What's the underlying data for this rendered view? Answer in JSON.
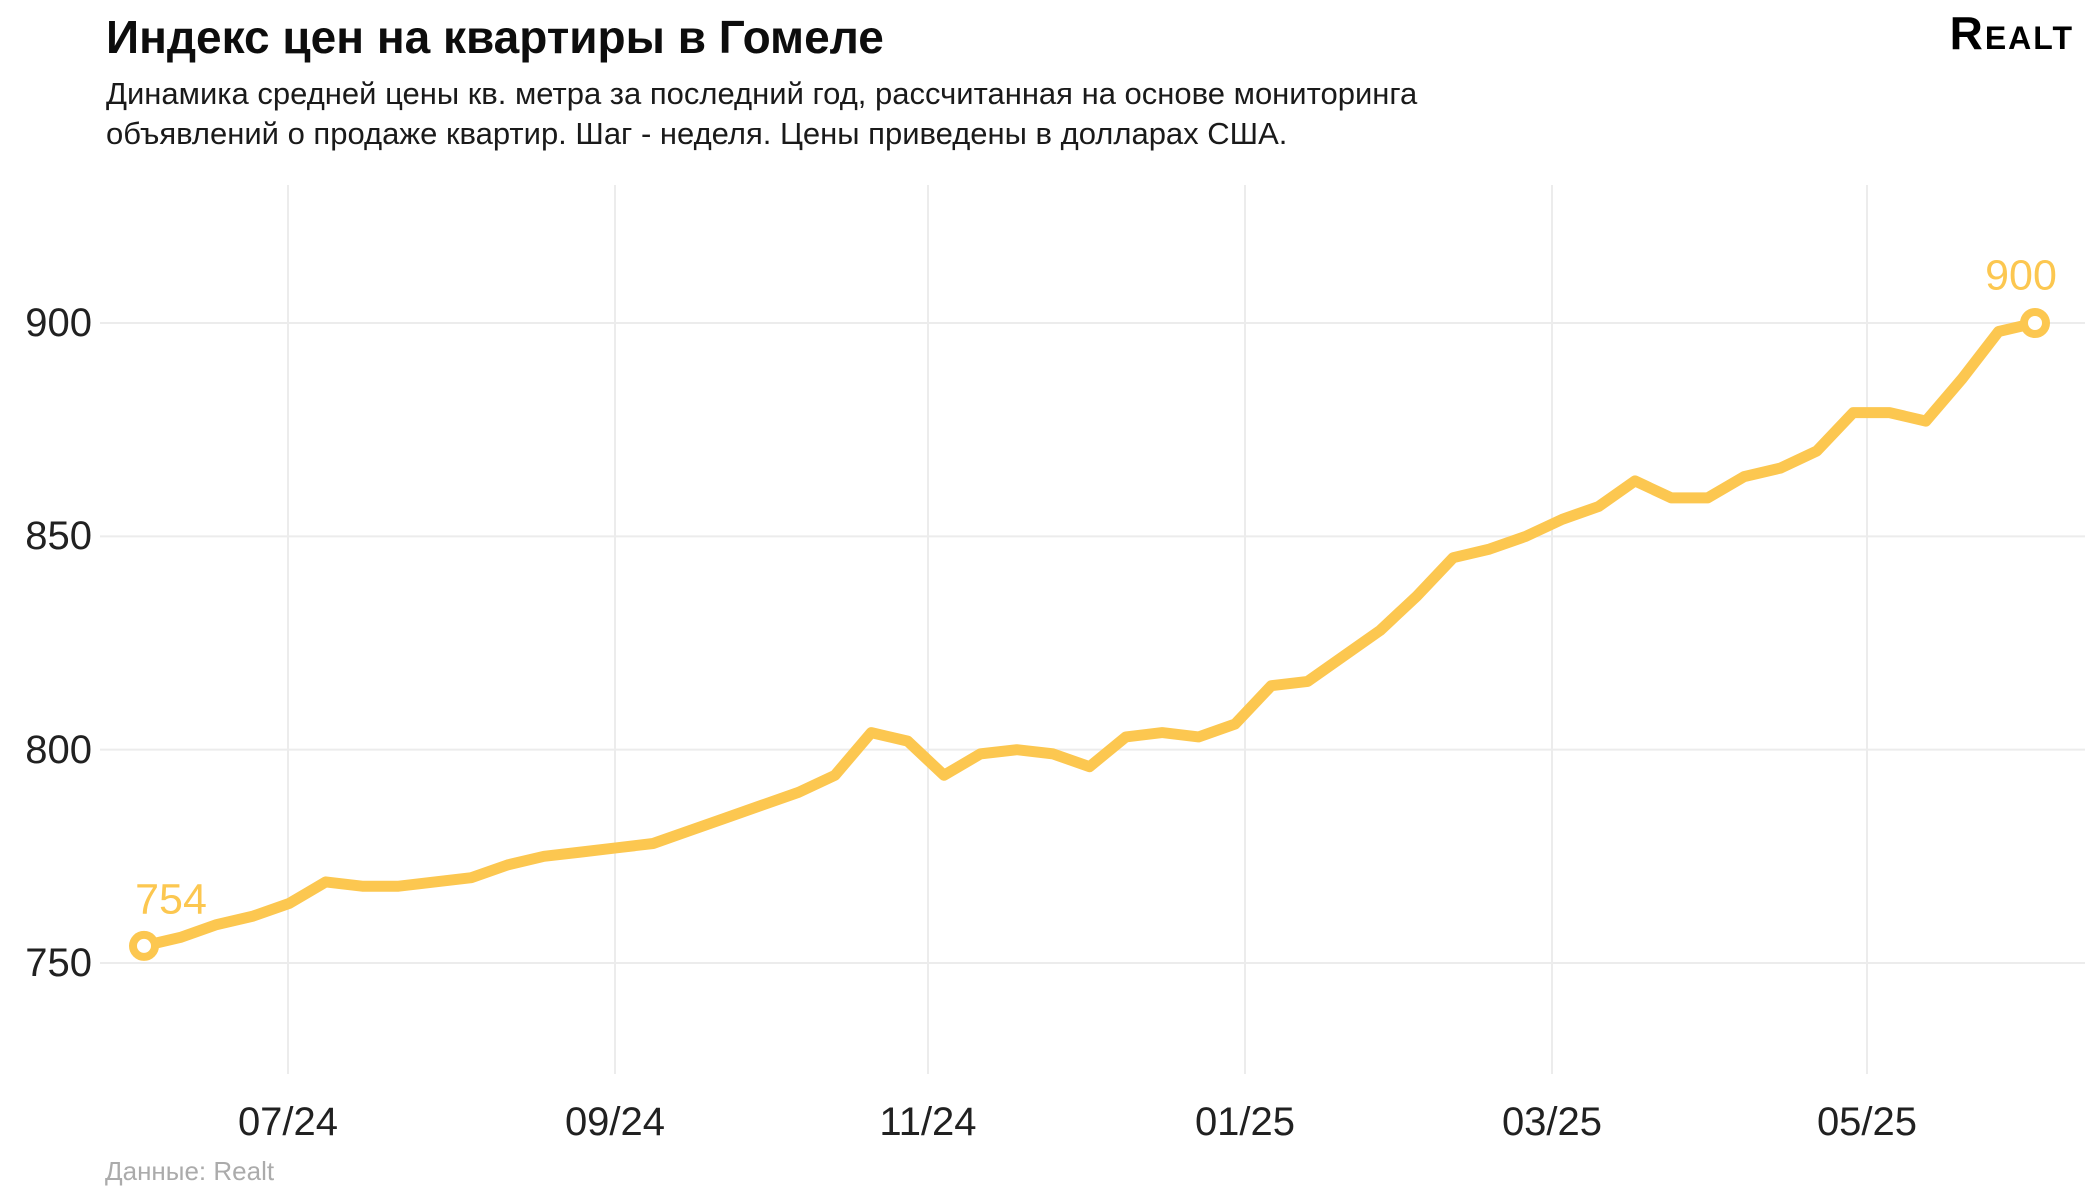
{
  "header": {
    "title": "Индекс цен на квартиры в Гомеле",
    "subtitle_lines": [
      "Динамика средней цены кв. метра за последний год, рассчитанная на основе мониторинга",
      "объявлений о продаже квартир. Шаг - неделя. Цены приведены в долларах США."
    ],
    "logo": "Realt"
  },
  "footer": {
    "source": "Данные: Realt"
  },
  "colors": {
    "line": "#FCC750",
    "grid": "#ECECEC",
    "point_label": "#FCC750",
    "axis_text": "#212121"
  },
  "chart_data": {
    "type": "line",
    "title": "Индекс цен на квартиры в Гомеле",
    "subtitle": "Динамика средней цены кв. метра за последний год, рассчитанная на основе мониторинга объявлений о продаже квартир. Шаг - неделя. Цены приведены в долларах США.",
    "xlabel": "",
    "ylabel": "",
    "x_axis": {
      "tick_labels": [
        "07/24",
        "09/24",
        "11/24",
        "01/25",
        "03/25",
        "05/25"
      ],
      "step": "неделя"
    },
    "y_axis": {
      "tick_labels": [
        "750",
        "800",
        "850",
        "900"
      ],
      "ticks": [
        750,
        800,
        850,
        900
      ],
      "ylim": [
        738,
        915
      ]
    },
    "grid": true,
    "legend_position": "none",
    "start_label": "754",
    "end_label": "900",
    "series": [
      {
        "color": "#FCC750",
        "marker_first_last": true,
        "values": [
          754,
          756,
          759,
          761,
          764,
          769,
          768,
          768,
          769,
          770,
          773,
          775,
          776,
          777,
          778,
          781,
          784,
          787,
          790,
          794,
          804,
          802,
          794,
          799,
          800,
          799,
          796,
          803,
          804,
          803,
          806,
          815,
          816,
          822,
          828,
          836,
          845,
          847,
          850,
          854,
          857,
          863,
          859,
          859,
          864,
          866,
          870,
          879,
          879,
          877,
          887,
          898,
          900
        ]
      }
    ]
  }
}
